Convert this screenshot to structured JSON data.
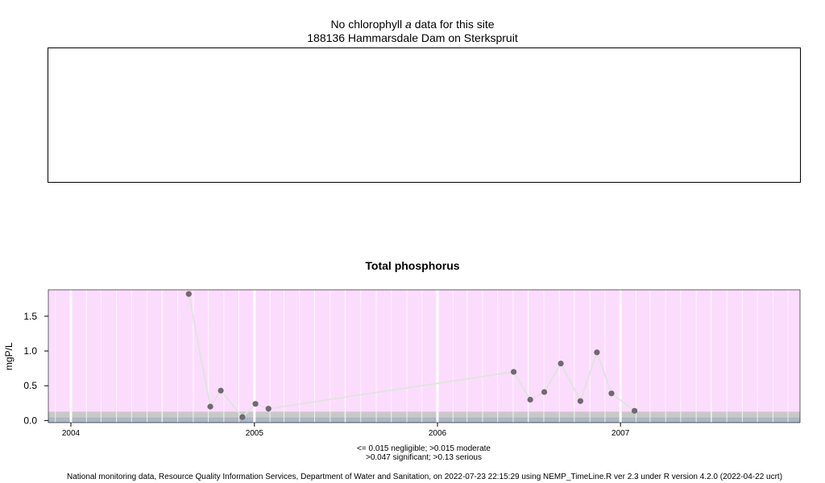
{
  "chlorophyll_panel": {
    "title_prefix": "No chlorophyll ",
    "title_italic": "a",
    "title_suffix": " data for this site",
    "site": "188136 Hammarsdale Dam on Sterkspruit"
  },
  "legend": {
    "line1": "<= 0.015 negligible; >0.015 moderate",
    "line2": ">0.047 significant; >0.13 serious"
  },
  "footer": "National monitoring data, Resource Quality Information Services, Department of Water and Sanitation, on 2022-07-23 22:15:29 using NEMP_TimeLine.R ver 2.3 under R version 4.2.0 (2022-04-22 ucrt)",
  "colors": {
    "serious": "#fcdcfc",
    "significant": "#c8c8c8",
    "moderate": "#a9b6c4",
    "points": "#6e6a70",
    "line": "#e0e4e0"
  },
  "chart_data": {
    "type": "line",
    "title": "Total phosphorus",
    "xlabel": "",
    "ylabel": "mgP/L",
    "xlim": [
      "2003-11-17",
      "2007-12-25"
    ],
    "ylim": [
      -0.03,
      1.88
    ],
    "x_tick_labels": [
      "2004",
      "2005",
      "2006",
      "2007"
    ],
    "y_tick_labels": [
      "0.0",
      "0.5",
      "1.0",
      "1.5"
    ],
    "y_ticks": [
      0.0,
      0.5,
      1.0,
      1.5
    ],
    "bands": [
      {
        "name": "negligible",
        "from": -0.03,
        "to": 0.015
      },
      {
        "name": "moderate",
        "from": 0.015,
        "to": 0.047
      },
      {
        "name": "significant",
        "from": 0.047,
        "to": 0.13
      },
      {
        "name": "serious",
        "from": 0.13,
        "to": 1.88
      }
    ],
    "grid": true,
    "series": [
      {
        "x": [
          "2004-08-23",
          "2004-10-05",
          "2004-10-26",
          "2004-12-08",
          "2005-01-03",
          "2005-01-29",
          "2006-06-02",
          "2006-07-05",
          "2006-08-02",
          "2006-09-04",
          "2006-10-13",
          "2006-11-15",
          "2006-12-14",
          "2007-01-29"
        ],
        "values": [
          1.82,
          0.2,
          0.43,
          0.05,
          0.24,
          0.17,
          0.7,
          0.3,
          0.41,
          0.82,
          0.28,
          0.98,
          0.39,
          0.14
        ]
      }
    ]
  }
}
